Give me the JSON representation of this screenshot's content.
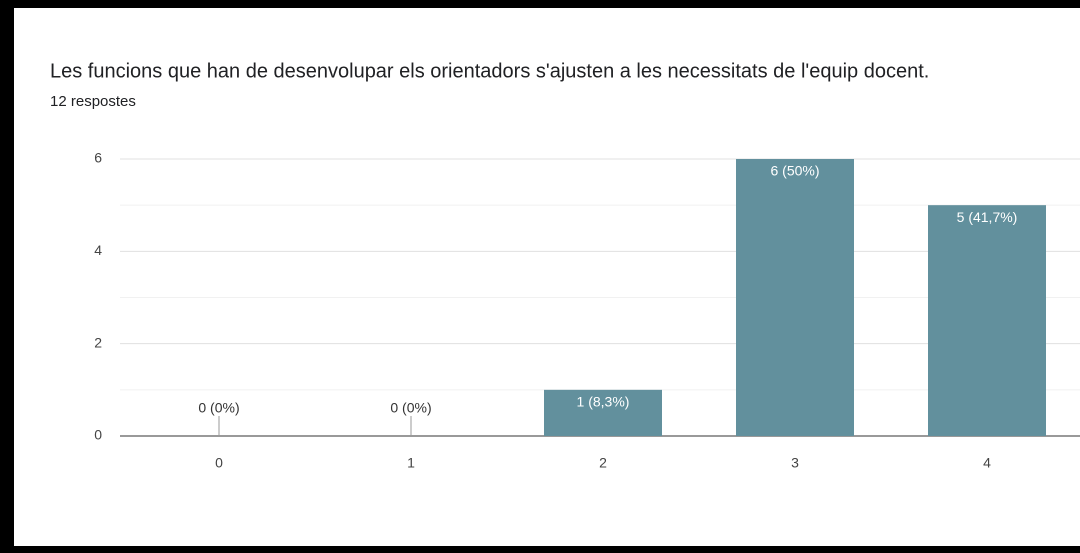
{
  "chart_data": {
    "type": "bar",
    "title": "Les funcions que han de desenvolupar els orientadors s'ajusten a les necessitats de l'equip docent.",
    "subtitle": "12 respostes",
    "categories": [
      "0",
      "1",
      "2",
      "3",
      "4"
    ],
    "values": [
      0,
      0,
      1,
      6,
      5
    ],
    "value_labels": [
      "0 (0%)",
      "0 (0%)",
      "1 (8,3%)",
      "6 (50%)",
      "5 (41,7%)"
    ],
    "color": "#62909d",
    "ylim": [
      0,
      6
    ],
    "yticks": [
      0,
      2,
      4,
      6
    ],
    "grid": true
  }
}
